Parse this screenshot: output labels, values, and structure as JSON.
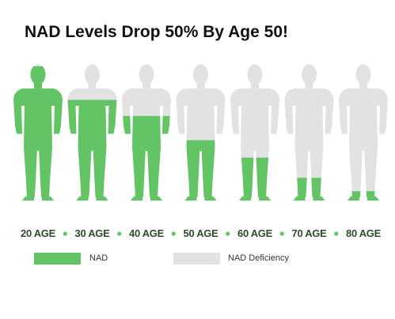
{
  "title": "NAD Levels Drop 50% By Age 50!",
  "chart_data": {
    "type": "bar",
    "categories": [
      "20 AGE",
      "30 AGE",
      "40 AGE",
      "50 AGE",
      "60 AGE",
      "70 AGE",
      "80 AGE"
    ],
    "series": [
      {
        "name": "NAD",
        "values": [
          100,
          75,
          63,
          45,
          32,
          17,
          7
        ]
      }
    ],
    "value_unit": "percent of body figure filled",
    "ylim": [
      0,
      100
    ],
    "legend_placement": "bottom",
    "colors": {
      "nad": "#62c465",
      "deficiency": "#e2e2e2",
      "label": "#2e4b2a"
    },
    "icon": "human-body-silhouette"
  },
  "legend": {
    "nad_label": "NAD",
    "deficiency_label": "NAD Deficiency"
  }
}
